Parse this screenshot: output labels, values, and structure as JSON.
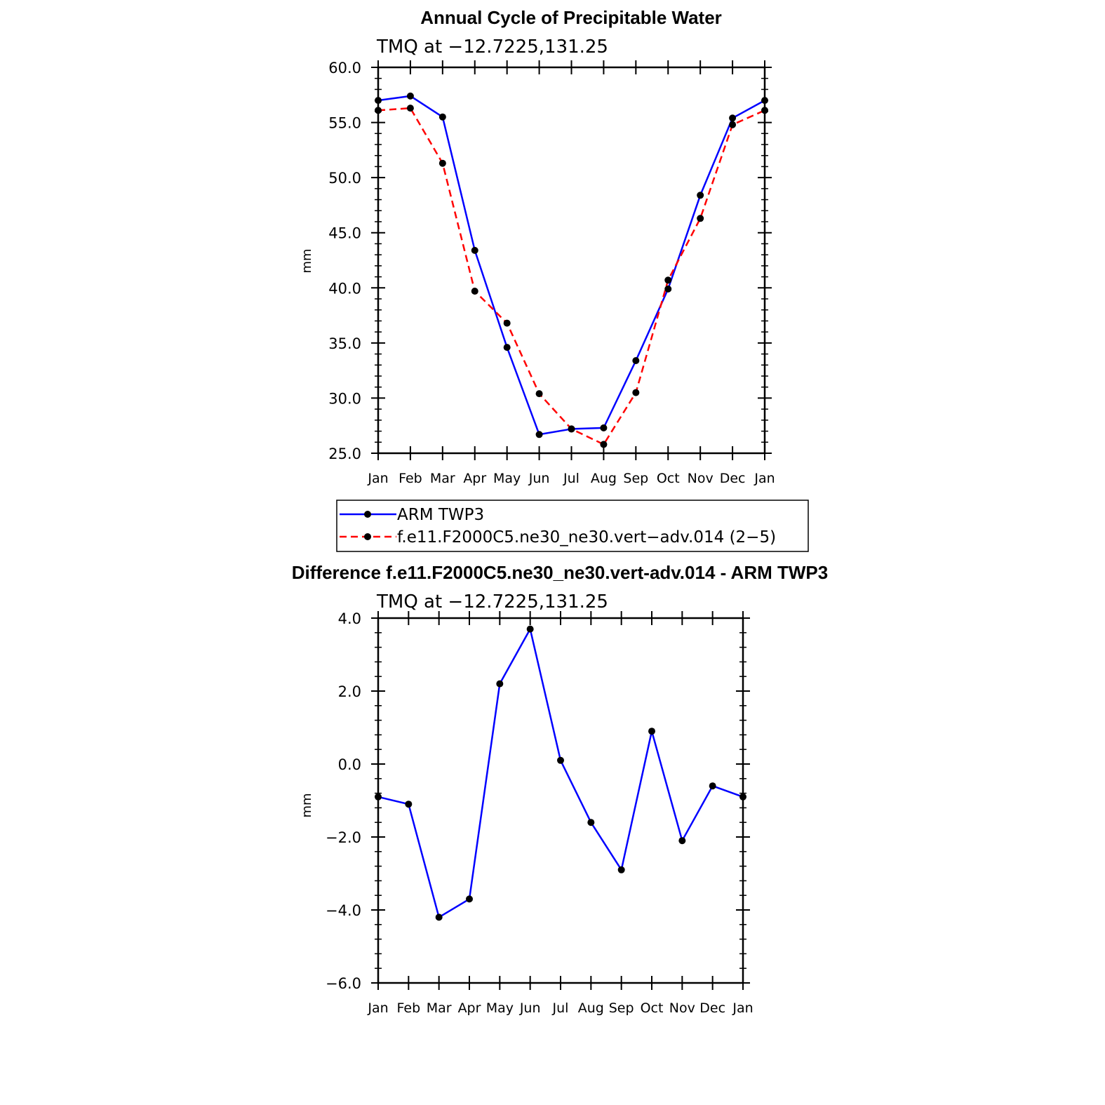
{
  "chart_data": [
    {
      "type": "line",
      "title": "Annual Cycle of Precipitable Water",
      "subtitle": "TMQ at −12.7225,131.25",
      "xlabel": "",
      "ylabel": "mm",
      "categories": [
        "Jan",
        "Feb",
        "Mar",
        "Apr",
        "May",
        "Jun",
        "Jul",
        "Aug",
        "Sep",
        "Oct",
        "Nov",
        "Dec",
        "Jan"
      ],
      "ylim": [
        25.0,
        60.0
      ],
      "yticks": [
        "25.0",
        "30.0",
        "35.0",
        "40.0",
        "45.0",
        "50.0",
        "55.0",
        "60.0"
      ],
      "series": [
        {
          "name": "ARM TWP3",
          "color": "#0000ff",
          "style": "solid",
          "values": [
            57.0,
            57.4,
            55.5,
            43.4,
            34.6,
            26.7,
            27.2,
            27.3,
            33.4,
            39.9,
            48.4,
            55.4,
            57.0
          ]
        },
        {
          "name": "f.e11.F2000C5.ne30_ne30.vert−adv.014 (2−5)",
          "color": "#ff0000",
          "style": "dashed",
          "values": [
            56.1,
            56.3,
            51.3,
            39.7,
            36.8,
            30.4,
            27.2,
            25.8,
            30.5,
            40.7,
            46.3,
            54.8,
            56.1
          ]
        }
      ]
    },
    {
      "type": "line",
      "title": "Difference f.e11.F2000C5.ne30_ne30.vert-adv.014 - ARM TWP3",
      "subtitle": "TMQ at −12.7225,131.25",
      "xlabel": "",
      "ylabel": "mm",
      "categories": [
        "Jan",
        "Feb",
        "Mar",
        "Apr",
        "May",
        "Jun",
        "Jul",
        "Aug",
        "Sep",
        "Oct",
        "Nov",
        "Dec",
        "Jan"
      ],
      "ylim": [
        -6.0,
        4.0
      ],
      "yticks": [
        "−6.0",
        "−4.0",
        "−2.0",
        "0.0",
        "2.0",
        "4.0"
      ],
      "series": [
        {
          "name": "Difference",
          "color": "#0000ff",
          "style": "solid",
          "values": [
            -0.9,
            -1.1,
            -4.2,
            -3.7,
            2.2,
            3.7,
            0.1,
            -1.6,
            -2.9,
            0.9,
            -2.1,
            -0.6,
            -0.9
          ]
        }
      ]
    }
  ]
}
